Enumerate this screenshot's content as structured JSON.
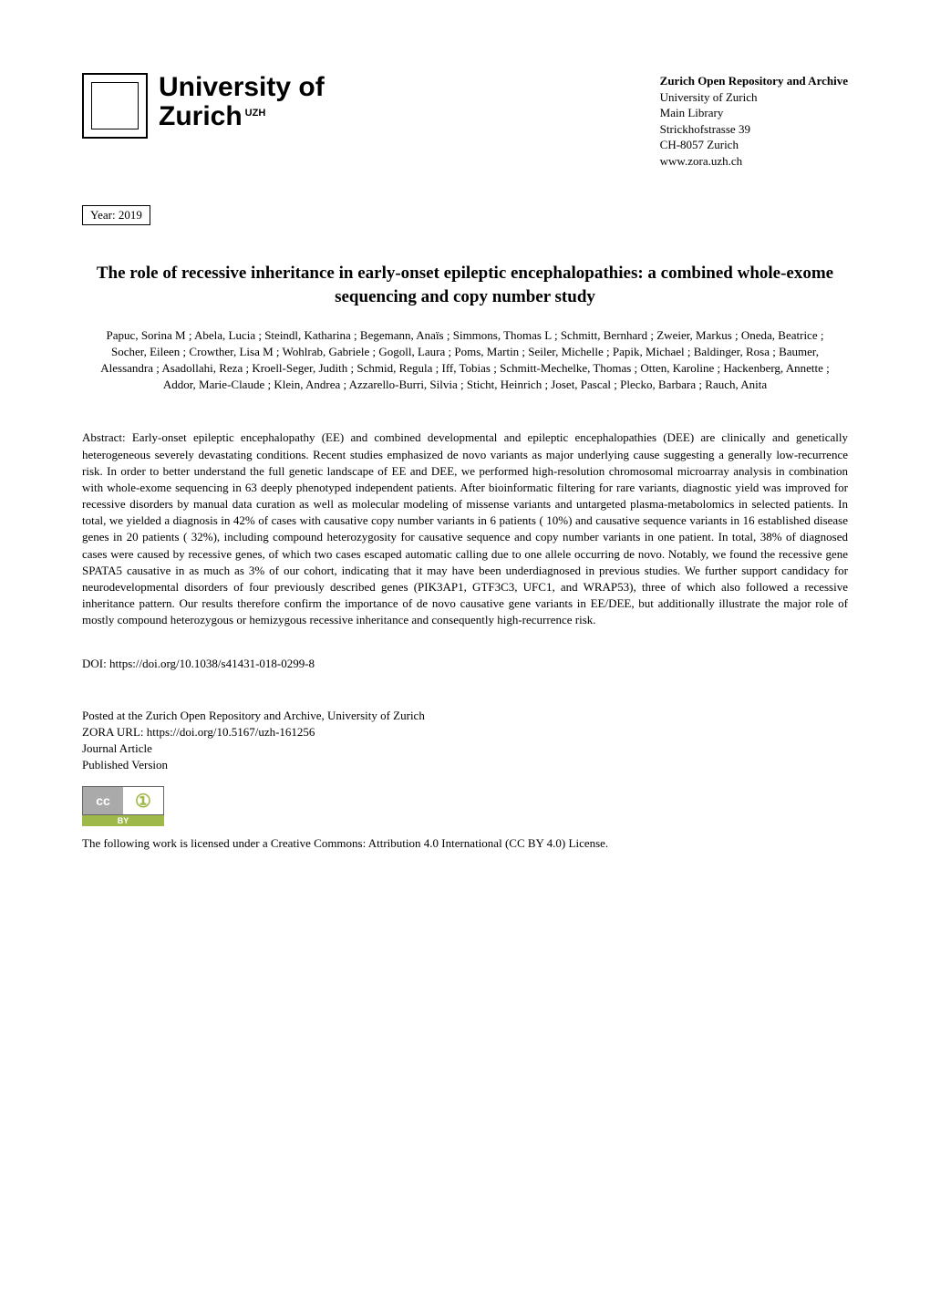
{
  "header": {
    "university_line1": "University of",
    "university_line2": "Zurich",
    "university_tag": "UZH",
    "archive_title": "Zurich Open Repository and Archive",
    "archive_lines": [
      "University of Zurich",
      "Main Library",
      "Strickhofstrasse 39",
      "CH-8057 Zurich",
      "www.zora.uzh.ch"
    ]
  },
  "year_label": "Year: 2019",
  "paper_title": "The role of recessive inheritance in early-onset epileptic encephalopathies: a combined whole-exome sequencing and copy number study",
  "authors": "Papuc, Sorina M ; Abela, Lucia ; Steindl, Katharina ; Begemann, Anaïs ; Simmons, Thomas L ; Schmitt, Bernhard ; Zweier, Markus ; Oneda, Beatrice ; Socher, Eileen ; Crowther, Lisa M ; Wohlrab, Gabriele ; Gogoll, Laura ; Poms, Martin ; Seiler, Michelle ; Papik, Michael ; Baldinger, Rosa ; Baumer, Alessandra ; Asadollahi, Reza ; Kroell-Seger, Judith ; Schmid, Regula ; Iff, Tobias ; Schmitt-Mechelke, Thomas ; Otten, Karoline ; Hackenberg, Annette ; Addor, Marie-Claude ; Klein, Andrea ; Azzarello-Burri, Silvia ; Sticht, Heinrich ; Joset, Pascal ; Plecko, Barbara ; Rauch, Anita",
  "abstract_label": "Abstract:",
  "abstract_text": " Early-onset epileptic encephalopathy (EE) and combined developmental and epileptic encephalopathies (DEE) are clinically and genetically heterogeneous severely devastating conditions. Recent studies emphasized de novo variants as major underlying cause suggesting a generally low-recurrence risk. In order to better understand the full genetic landscape of EE and DEE, we performed high-resolution chromosomal microarray analysis in combination with whole-exome sequencing in 63 deeply phenotyped independent patients. After bioinformatic filtering for rare variants, diagnostic yield was improved for recessive disorders by manual data curation as well as molecular modeling of missense variants and untargeted plasma-metabolomics in selected patients. In total, we yielded a diagnosis in  42% of cases with causative copy number variants in 6 patients ( 10%) and causative sequence variants in 16 established disease genes in 20 patients ( 32%), including compound heterozygosity for causative sequence and copy number variants in one patient. In total, 38% of diagnosed cases were caused by recessive genes, of which two cases escaped automatic calling due to one allele occurring de novo. Notably, we found the recessive gene SPATA5 causative in as much as 3% of our cohort, indicating that it may have been underdiagnosed in previous studies. We further support candidacy for neurodevelopmental disorders of four previously described genes (PIK3AP1, GTF3C3, UFC1, and WRAP53), three of which also followed a recessive inheritance pattern. Our results therefore confirm the importance of de novo causative gene variants in EE/DEE, but additionally illustrate the major role of mostly compound heterozygous or hemizygous recessive inheritance and consequently high-recurrence risk.",
  "doi_label": "DOI: https://doi.org/10.1038/s41431-018-0299-8",
  "posted": {
    "line1": "Posted at the Zurich Open Repository and Archive, University of Zurich",
    "line2": "ZORA URL: https://doi.org/10.5167/uzh-161256",
    "line3": "Journal Article",
    "line4": "Published Version"
  },
  "cc": {
    "left": "cc",
    "right": "①",
    "by": "BY"
  },
  "license_text": "The following work is licensed under a Creative Commons: Attribution 4.0 International (CC BY 4.0) License."
}
